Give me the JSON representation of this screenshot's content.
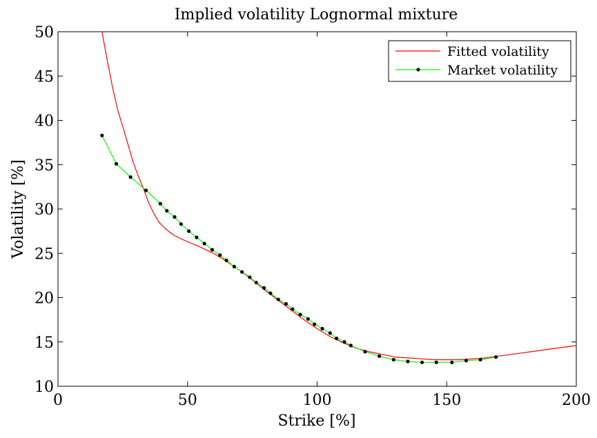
{
  "chart_data": {
    "type": "line",
    "title": "Implied volatility Lognormal mixture",
    "xlabel": "Strike [%]",
    "ylabel": "Volatility [%]",
    "xlim": [
      0,
      200
    ],
    "ylim": [
      10,
      50
    ],
    "xticks": [
      0,
      50,
      100,
      150,
      200
    ],
    "yticks": [
      10,
      15,
      20,
      25,
      30,
      35,
      40,
      45,
      50
    ],
    "grid": false,
    "legend_position": "top-right",
    "series": [
      {
        "name": "Fitted volatility",
        "color": "#ff0000",
        "marker": "none",
        "x": [
          17,
          19,
          21,
          23,
          25,
          27,
          29,
          31,
          33,
          35,
          37,
          39,
          41,
          43,
          45,
          47,
          50,
          55,
          60,
          65,
          70,
          75,
          80,
          85,
          90,
          95,
          100,
          105,
          110,
          115,
          120,
          125,
          130,
          135,
          140,
          145,
          150,
          155,
          160,
          165,
          170,
          175,
          180,
          185,
          190,
          195,
          200
        ],
        "y": [
          50.0,
          46.8,
          43.8,
          41.2,
          39.3,
          37.3,
          35.3,
          33.7,
          32.3,
          30.7,
          29.5,
          28.5,
          27.9,
          27.4,
          27.0,
          26.7,
          26.3,
          25.7,
          25.0,
          24.1,
          23.1,
          22.0,
          20.8,
          19.7,
          18.6,
          17.5,
          16.5,
          15.6,
          14.9,
          14.3,
          13.9,
          13.6,
          13.3,
          13.2,
          13.1,
          13.0,
          13.0,
          13.0,
          13.1,
          13.2,
          13.4,
          13.6,
          13.8,
          14.0,
          14.2,
          14.4,
          14.6
        ]
      },
      {
        "name": "Market volatility",
        "color": "#00ff00",
        "marker": "dot",
        "marker_color": "#000000",
        "x": [
          17,
          22.5,
          28,
          34,
          39.5,
          42,
          45,
          47.5,
          50.5,
          53.5,
          56.5,
          59.5,
          62.5,
          65,
          68,
          71,
          74,
          76.5,
          79.5,
          82,
          85,
          88,
          90.5,
          93.5,
          96.5,
          99,
          102,
          105,
          107.5,
          110.5,
          113,
          118.5,
          124,
          129.5,
          135,
          140.5,
          146,
          152,
          157.5,
          163,
          169
        ],
        "y": [
          38.3,
          35.1,
          33.6,
          32.1,
          30.6,
          29.8,
          29.1,
          28.3,
          27.5,
          26.8,
          26.1,
          25.4,
          24.8,
          24.2,
          23.5,
          22.9,
          22.3,
          21.7,
          21.1,
          20.5,
          19.8,
          19.3,
          18.7,
          18.1,
          17.6,
          17.0,
          16.5,
          16.0,
          15.4,
          15.0,
          14.6,
          13.9,
          13.4,
          13.0,
          12.8,
          12.7,
          12.7,
          12.7,
          12.9,
          13.0,
          13.3
        ]
      }
    ]
  }
}
